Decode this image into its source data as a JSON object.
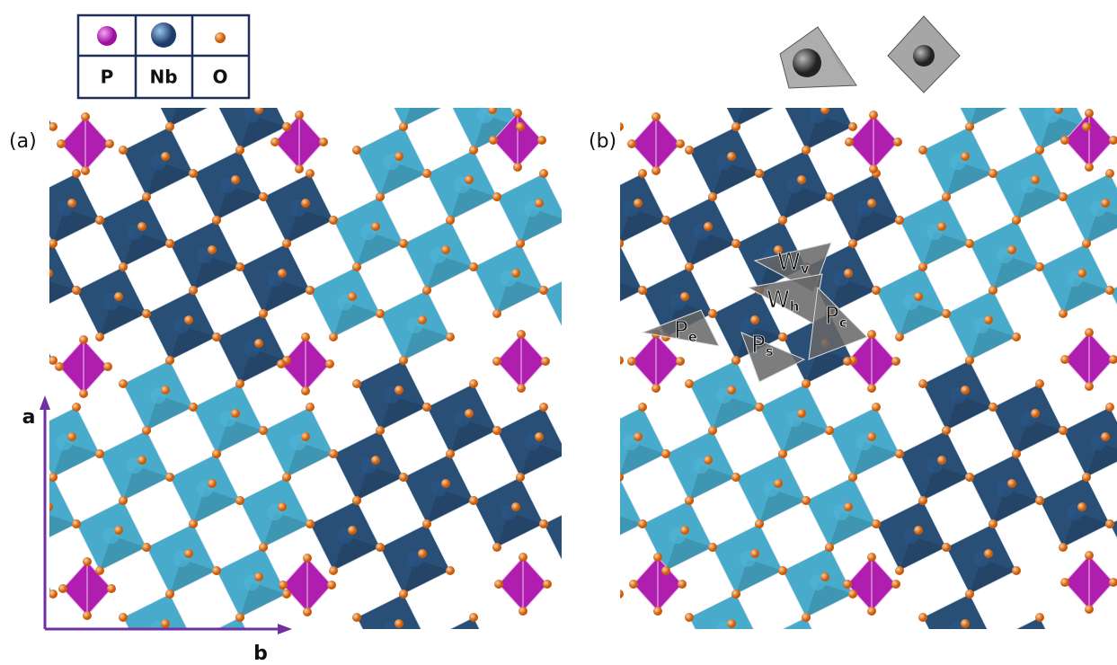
{
  "legend": {
    "symbols": [
      "P",
      "Nb",
      "O"
    ]
  },
  "panels": [
    {
      "label": "(a)"
    },
    {
      "label": "(b)"
    }
  ],
  "axes": {
    "vertical": "a",
    "horizontal": "b"
  },
  "sites": [
    {
      "symbol": "W",
      "subscript": "v"
    },
    {
      "symbol": "W",
      "subscript": "h"
    },
    {
      "symbol": "P",
      "subscript": "c"
    },
    {
      "symbol": "P",
      "subscript": "e"
    },
    {
      "symbol": "P",
      "subscript": "s"
    }
  ]
}
